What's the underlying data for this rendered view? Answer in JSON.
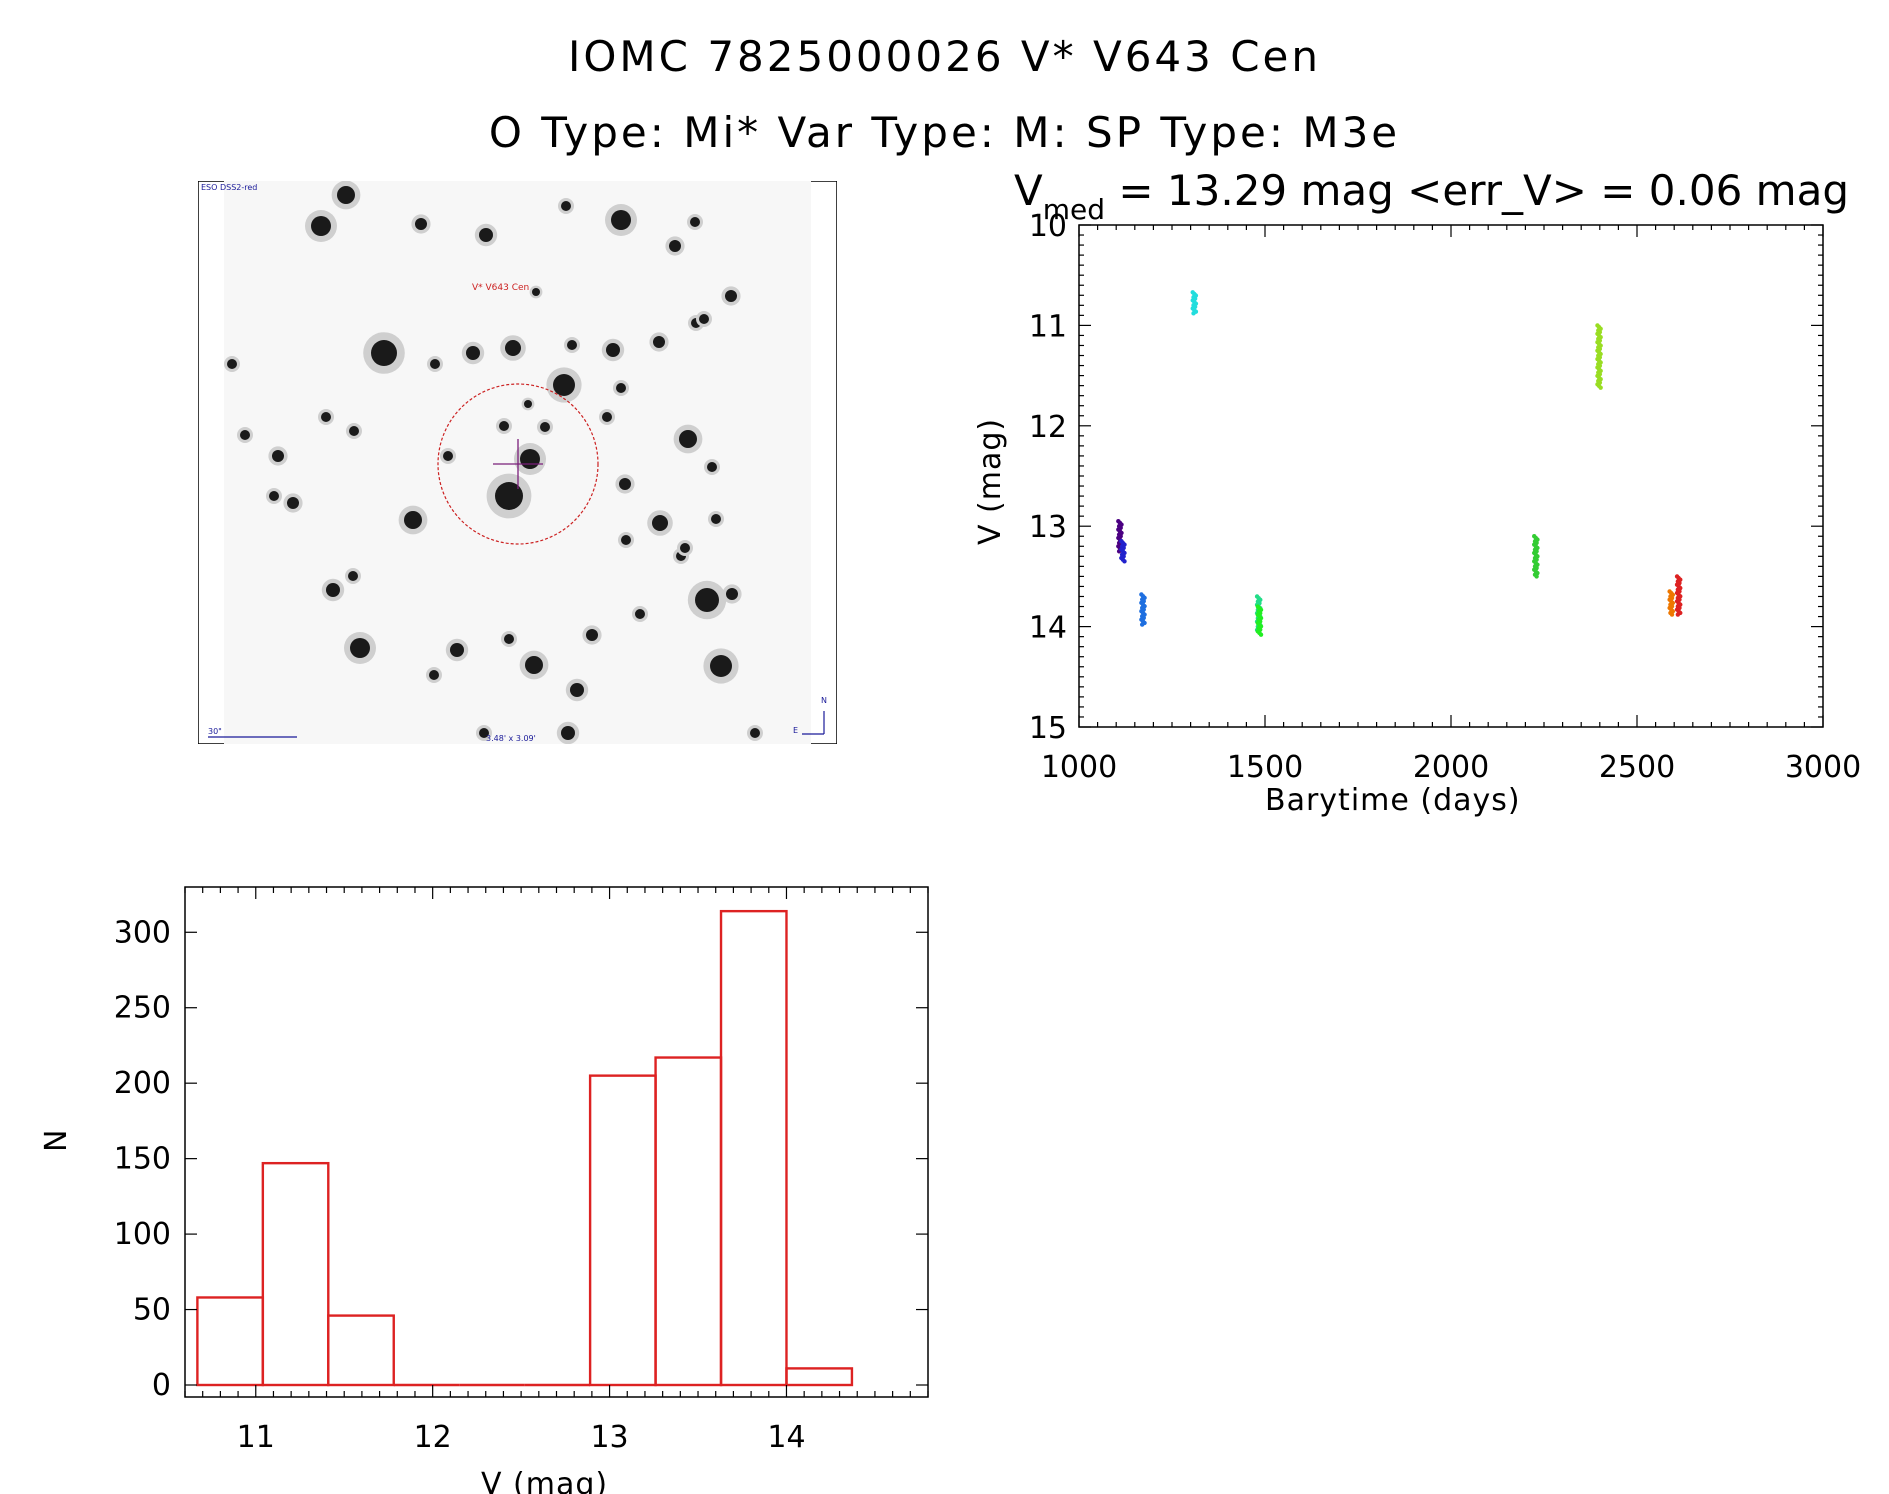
{
  "header": {
    "title_line1": "IOMC 7825000026    V* V643 Cen",
    "title_line2": "O Type: Mi*  Var Type: M:  SP Type: M3e"
  },
  "finder_chart": {
    "survey_label": "ESO DSS2-red",
    "object_label": "V* V643 Cen",
    "scale_label": "30\"",
    "fov_label": "3.48' x 3.09'",
    "compass_n": "N",
    "compass_e": "E",
    "circle_color": "#cc2222",
    "crosshair_color": "#7a1f7a",
    "label_color": "#cc2222",
    "annot_color": "#1a1a99"
  },
  "chart_data": [
    {
      "type": "scatter",
      "title_prefix": "V",
      "title_subscript": "med",
      "title_rest": " = 13.29 mag <err_V> = 0.06 mag",
      "xlabel": "Barytime (days)",
      "ylabel": "V (mag)",
      "xlim": [
        1000,
        3000
      ],
      "ylim": [
        15,
        10
      ],
      "y_inverted": true,
      "xticks": [
        1000,
        1500,
        2000,
        2500,
        3000
      ],
      "yticks": [
        10,
        11,
        12,
        13,
        14,
        15
      ],
      "series": [
        {
          "color": "#4b0082",
          "x": 1110,
          "y": [
            12.95,
            13.25
          ]
        },
        {
          "color": "#2222cc",
          "x": 1118,
          "y": [
            13.15,
            13.35
          ]
        },
        {
          "color": "#1e6fe0",
          "x": 1172,
          "y": [
            13.68,
            13.98
          ]
        },
        {
          "color": "#22dddd",
          "x": 1310,
          "y": [
            10.67,
            10.88
          ]
        },
        {
          "color": "#22dd88",
          "x": 1483,
          "y": [
            13.7,
            14.05
          ]
        },
        {
          "color": "#22ee22",
          "x": 1485,
          "y": [
            13.8,
            14.08
          ]
        },
        {
          "color": "#33cc33",
          "x": 2228,
          "y": [
            13.1,
            13.5
          ]
        },
        {
          "color": "#99dd22",
          "x": 2398,
          "y": [
            11.0,
            11.62
          ]
        },
        {
          "color": "#ee7700",
          "x": 2592,
          "y": [
            13.65,
            13.88
          ]
        },
        {
          "color": "#dd2222",
          "x": 2612,
          "y": [
            13.5,
            13.88
          ]
        }
      ]
    },
    {
      "type": "bar",
      "xlabel": "V (mag)",
      "ylabel": "N",
      "xlim": [
        10.6,
        14.8
      ],
      "ylim": [
        0,
        330
      ],
      "xticks": [
        11,
        12,
        13,
        14
      ],
      "yticks": [
        0,
        50,
        100,
        150,
        200,
        250,
        300
      ],
      "bar_color": "#dd2222",
      "bins": [
        {
          "from": 10.67,
          "to": 11.04,
          "value": 58
        },
        {
          "from": 11.04,
          "to": 11.41,
          "value": 147
        },
        {
          "from": 11.41,
          "to": 11.78,
          "value": 46
        },
        {
          "from": 11.78,
          "to": 12.15,
          "value": 0
        },
        {
          "from": 12.15,
          "to": 12.52,
          "value": 0
        },
        {
          "from": 12.52,
          "to": 12.89,
          "value": 0
        },
        {
          "from": 12.89,
          "to": 13.26,
          "value": 205
        },
        {
          "from": 13.26,
          "to": 13.63,
          "value": 217
        },
        {
          "from": 13.63,
          "to": 14.0,
          "value": 314
        },
        {
          "from": 14.0,
          "to": 14.37,
          "value": 11
        }
      ]
    }
  ]
}
